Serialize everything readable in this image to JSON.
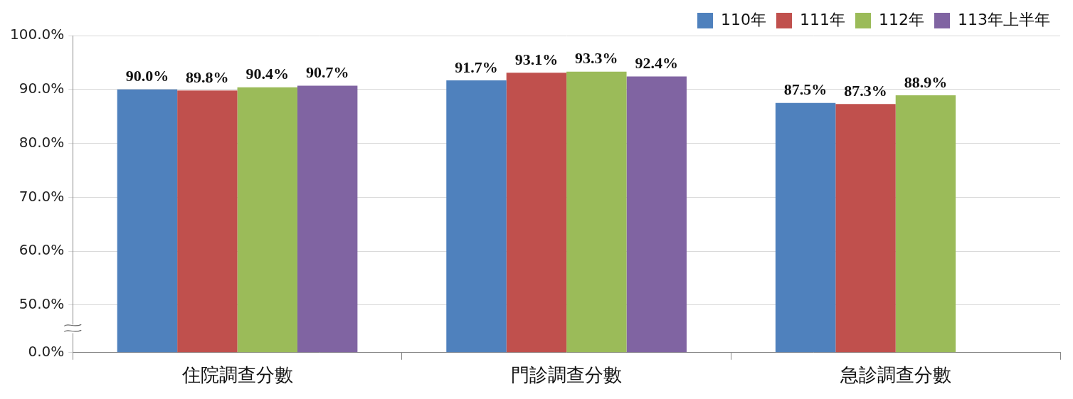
{
  "chart_data": {
    "type": "bar",
    "categories": [
      "住院調查分數",
      "門診調查分數",
      "急診調查分數"
    ],
    "series": [
      {
        "name": "110年",
        "color": "#4F81BD",
        "values": [
          90.0,
          91.7,
          87.5
        ],
        "value_labels": [
          "90.0%",
          "91.7%",
          "87.5%"
        ]
      },
      {
        "name": "111年",
        "color": "#C0504D",
        "values": [
          89.8,
          93.1,
          87.3
        ],
        "value_labels": [
          "89.8%",
          "93.1%",
          "87.3%"
        ]
      },
      {
        "name": "112年",
        "color": "#9BBB59",
        "values": [
          90.4,
          93.3,
          88.9
        ],
        "value_labels": [
          "90.4%",
          "93.3%",
          "88.9%"
        ]
      },
      {
        "name": "113年上半年",
        "color": "#8064A2",
        "values": [
          90.7,
          92.4,
          null
        ],
        "value_labels": [
          "90.7%",
          "92.4%",
          null
        ]
      }
    ],
    "ylim": [
      0,
      100
    ],
    "yticks": [
      {
        "value": 0,
        "label": "0.0%"
      },
      {
        "value": 50,
        "label": "50.0%"
      },
      {
        "value": 60,
        "label": "60.0%"
      },
      {
        "value": 70,
        "label": "70.0%"
      },
      {
        "value": 80,
        "label": "80.0%"
      },
      {
        "value": 90,
        "label": "90.0%"
      },
      {
        "value": 100,
        "label": "100.0%"
      }
    ],
    "grid": true,
    "legend": "upper right",
    "data_labels": true
  }
}
